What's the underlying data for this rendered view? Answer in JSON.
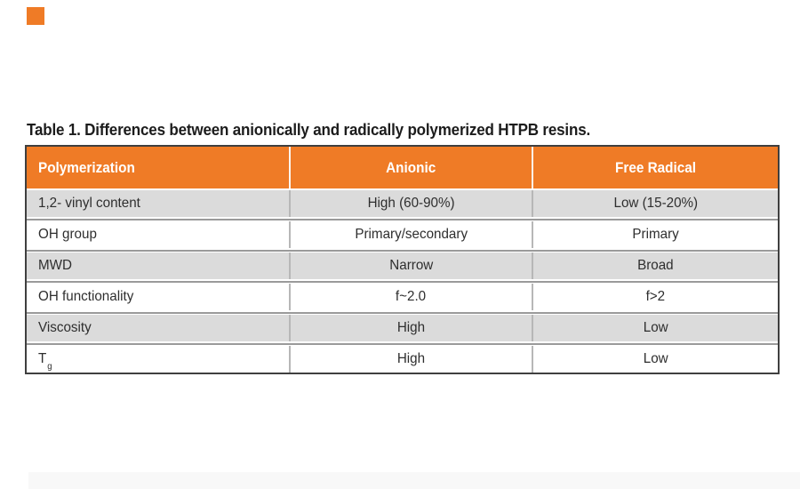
{
  "caption": "Table 1. Differences between anionically and radically polymerized HTPB resins.",
  "decor": {
    "corner_square_color": "#ef7b26",
    "bottom_strip_color": "#f8f8f8"
  },
  "table": {
    "colors": {
      "header_bg": "#ef7b26",
      "header_text": "#ffffff",
      "alt_row_bg": "#dbdbdb",
      "row_bg": "#ffffff",
      "outer_border": "#3f3f3f",
      "row_divider": "#9a9a9a",
      "column_divider": "#b7b7b7",
      "body_text": "#2e2e2e"
    },
    "header": {
      "col1": "Polymerization",
      "col2": "Anionic",
      "col3": "Free Radical"
    },
    "rows": [
      {
        "property": "1,2- vinyl content",
        "anionic": "High (60-90%)",
        "free_radical": "Low (15-20%)"
      },
      {
        "property": "OH group",
        "anionic": "Primary/secondary",
        "free_radical": "Primary"
      },
      {
        "property": "MWD",
        "anionic": "Narrow",
        "free_radical": "Broad"
      },
      {
        "property": "OH functionality",
        "anionic": "f~2.0",
        "free_radical": "f>2"
      },
      {
        "property": "Viscosity",
        "anionic": "High",
        "free_radical": "Low"
      },
      {
        "property": "T",
        "property_sub": "g",
        "anionic": "High",
        "free_radical": "Low"
      }
    ]
  }
}
